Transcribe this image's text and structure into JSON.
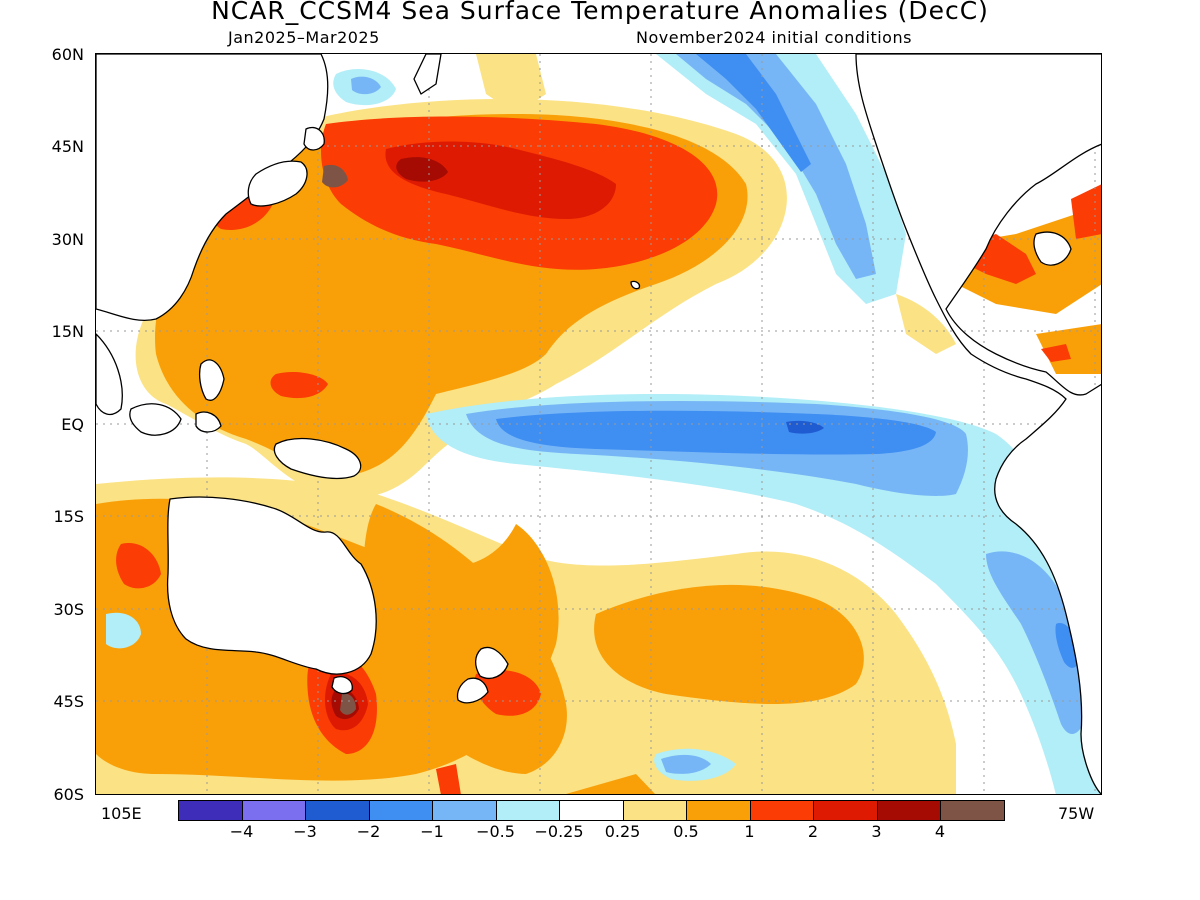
{
  "title": "NCAR_CCSM4 Sea Surface Temperature Anomalies (DecC)",
  "subtitle_left": "Jan2025–Mar2025",
  "subtitle_right": "November2024 initial conditions",
  "lat_labels": [
    "60N",
    "45N",
    "30N",
    "15N",
    "EQ",
    "15S",
    "30S",
    "45S",
    "60S"
  ],
  "lon_labels": {
    "left": "105E",
    "right": "75W"
  },
  "legend": {
    "colors": [
      "#3d2db8",
      "#7b6ff0",
      "#1f5bd1",
      "#3f8ef2",
      "#77b6f6",
      "#b2eef7",
      "#ffffff",
      "#fbe284",
      "#f9a009",
      "#fb3c04",
      "#df1a02",
      "#a50b02",
      "#7e5447"
    ],
    "labels": [
      "−4",
      "−3",
      "−2",
      "−1",
      "−0.5",
      "−0.25",
      "0.25",
      "0.5",
      "1",
      "2",
      "3",
      "4"
    ]
  }
}
